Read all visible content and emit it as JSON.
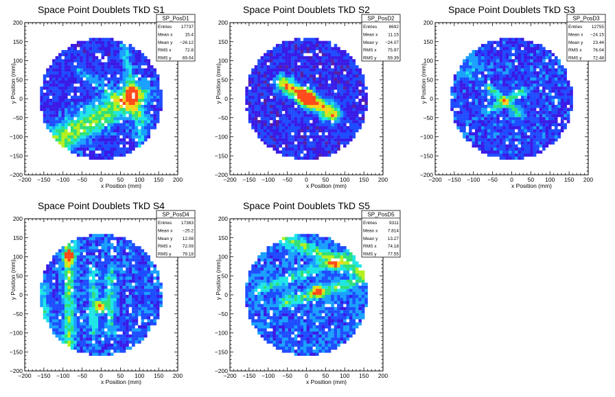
{
  "colors": {
    "background": "#ffffff",
    "frame": "#000000",
    "palette": [
      "#5a1ea0",
      "#3a1ae6",
      "#1e4cff",
      "#1aa0ff",
      "#1ee6e6",
      "#2fe07a",
      "#b4f01e",
      "#ffd21e",
      "#ff4a1a"
    ]
  },
  "chart_data": [
    {
      "type": "heatmap",
      "title": "Space Point Doublets TkD S1",
      "xlabel": "x Position (mm)",
      "ylabel": "y Position (mm)",
      "xlim": [
        -200,
        200
      ],
      "ylim": [
        -200,
        200
      ],
      "xticks": [
        "−200",
        "−150",
        "−100",
        "−50",
        "0",
        "50",
        "100",
        "150",
        "200"
      ],
      "yticks": [
        "−200",
        "−150",
        "−100",
        "−50",
        "0",
        "50",
        "100",
        "150",
        "200"
      ],
      "stats": {
        "name": "SP_PosD1",
        "rows": [
          {
            "label": "Entries",
            "value": "17737"
          },
          {
            "label": "Mean x",
            "value": "15.4"
          },
          {
            "label": "Mean y",
            "value": "−26.12"
          },
          {
            "label": "RMS x",
            "value": "72.8"
          },
          {
            "label": "RMS y",
            "value": "69.04"
          }
        ]
      },
      "footprint_radius_mm": 160,
      "background_level": 0.22,
      "features": [
        {
          "kind": "band",
          "from": [
            -110,
            -110
          ],
          "to": [
            90,
            10
          ],
          "width": 26,
          "strength": 0.45
        },
        {
          "kind": "band",
          "from": [
            -60,
            80
          ],
          "to": [
            120,
            -60
          ],
          "width": 10,
          "strength": 0.2
        },
        {
          "kind": "band",
          "from": [
            60,
            140
          ],
          "to": [
            110,
            -130
          ],
          "width": 10,
          "strength": 0.22
        },
        {
          "kind": "spot",
          "center": [
            80,
            15
          ],
          "radius": 10,
          "strength": 0.7
        }
      ]
    },
    {
      "type": "heatmap",
      "title": "Space Point Doublets TkD S2",
      "xlabel": "x Position (mm)",
      "ylabel": "y Position (mm)",
      "xlim": [
        -200,
        200
      ],
      "ylim": [
        -200,
        200
      ],
      "xticks": [
        "−200",
        "−150",
        "−100",
        "−50",
        "0",
        "50",
        "100",
        "150",
        "200"
      ],
      "yticks": [
        "−200",
        "−150",
        "−100",
        "−50",
        "0",
        "50",
        "100",
        "150",
        "200"
      ],
      "stats": {
        "name": "SP_PosD2",
        "rows": [
          {
            "label": "Entries",
            "value": "8692"
          },
          {
            "label": "Mean x",
            "value": "11.15"
          },
          {
            "label": "Mean y",
            "value": "−24.07"
          },
          {
            "label": "RMS x",
            "value": "75.97"
          },
          {
            "label": "RMS y",
            "value": "59.39"
          }
        ]
      },
      "footprint_radius_mm": 160,
      "background_level": 0.2,
      "features": [
        {
          "kind": "band",
          "from": [
            -60,
            40
          ],
          "to": [
            70,
            -40
          ],
          "width": 14,
          "strength": 0.65
        },
        {
          "kind": "spot",
          "center": [
            0,
            0
          ],
          "radius": 14,
          "strength": 0.75
        }
      ]
    },
    {
      "type": "heatmap",
      "title": "Space Point Doublets TkD S3",
      "xlabel": "x Position (mm)",
      "ylabel": "y Position (mm)",
      "xlim": [
        -200,
        200
      ],
      "ylim": [
        -200,
        200
      ],
      "xticks": [
        "−200",
        "−150",
        "−100",
        "−50",
        "0",
        "50",
        "100",
        "150",
        "200"
      ],
      "yticks": [
        "−200",
        "−150",
        "−100",
        "−50",
        "0",
        "50",
        "100",
        "150",
        "200"
      ],
      "stats": {
        "name": "SP_PosD3",
        "rows": [
          {
            "label": "Entries",
            "value": "12755"
          },
          {
            "label": "Mean x",
            "value": "−24.15"
          },
          {
            "label": "Mean y",
            "value": "23.44"
          },
          {
            "label": "RMS x",
            "value": "76.04"
          },
          {
            "label": "RMS y",
            "value": "72.48"
          }
        ]
      },
      "footprint_radius_mm": 160,
      "background_level": 0.25,
      "features": [
        {
          "kind": "band",
          "from": [
            -60,
            30
          ],
          "to": [
            20,
            -40
          ],
          "width": 8,
          "strength": 0.35
        },
        {
          "kind": "band",
          "from": [
            -60,
            -30
          ],
          "to": [
            30,
            20
          ],
          "width": 8,
          "strength": 0.35
        },
        {
          "kind": "spot",
          "center": [
            -110,
            80
          ],
          "radius": 25,
          "strength": 0.15
        }
      ]
    },
    {
      "type": "heatmap",
      "title": "Space Point Doublets TkD S4",
      "xlabel": "x Position (mm)",
      "ylabel": "y Position (mm)",
      "xlim": [
        -200,
        200
      ],
      "ylim": [
        -200,
        200
      ],
      "xticks": [
        "−200",
        "−150",
        "−100",
        "−50",
        "0",
        "50",
        "100",
        "150",
        "200"
      ],
      "yticks": [
        "−200",
        "−150",
        "−100",
        "−50",
        "0",
        "50",
        "100",
        "150",
        "200"
      ],
      "stats": {
        "name": "SP_PosD4",
        "rows": [
          {
            "label": "Entries",
            "value": "17383"
          },
          {
            "label": "Mean x",
            "value": "−25.2"
          },
          {
            "label": "Mean y",
            "value": "12.08"
          },
          {
            "label": "RMS x",
            "value": "72.09"
          },
          {
            "label": "RMS y",
            "value": "79.18"
          }
        ]
      },
      "footprint_radius_mm": 160,
      "background_level": 0.28,
      "features": [
        {
          "kind": "band",
          "from": [
            -85,
            150
          ],
          "to": [
            -85,
            -150
          ],
          "width": 10,
          "strength": 0.35
        },
        {
          "kind": "band",
          "from": [
            -20,
            60
          ],
          "to": [
            -20,
            -100
          ],
          "width": 8,
          "strength": 0.25
        },
        {
          "kind": "band",
          "from": [
            25,
            60
          ],
          "to": [
            25,
            -100
          ],
          "width": 8,
          "strength": 0.25
        },
        {
          "kind": "band",
          "from": [
            -150,
            20
          ],
          "to": [
            -150,
            -120
          ],
          "width": 8,
          "strength": 0.22
        },
        {
          "kind": "spot",
          "center": [
            -85,
            100
          ],
          "radius": 12,
          "strength": 0.55
        },
        {
          "kind": "spot",
          "center": [
            0,
            -30
          ],
          "radius": 10,
          "strength": 0.7
        }
      ]
    },
    {
      "type": "heatmap",
      "title": "Space Point Doublets TkD S5",
      "xlabel": "x Position (mm)",
      "ylabel": "y Position (mm)",
      "xlim": [
        -200,
        200
      ],
      "ylim": [
        -200,
        200
      ],
      "xticks": [
        "−200",
        "−150",
        "−100",
        "−50",
        "0",
        "50",
        "100",
        "150",
        "200"
      ],
      "yticks": [
        "−200",
        "−150",
        "−100",
        "−50",
        "0",
        "50",
        "100",
        "150",
        "200"
      ],
      "stats": {
        "name": "SP_PosD5",
        "rows": [
          {
            "label": "Entries",
            "value": "9311"
          },
          {
            "label": "Mean x",
            "value": "7.814"
          },
          {
            "label": "Mean y",
            "value": "13.27"
          },
          {
            "label": "RMS x",
            "value": "74.18"
          },
          {
            "label": "RMS y",
            "value": "77.55"
          }
        ]
      },
      "footprint_radius_mm": 160,
      "background_level": 0.3,
      "features": [
        {
          "kind": "band",
          "from": [
            -60,
            150
          ],
          "to": [
            150,
            60
          ],
          "width": 12,
          "strength": 0.32
        },
        {
          "kind": "band",
          "from": [
            -130,
            10
          ],
          "to": [
            130,
            110
          ],
          "width": 10,
          "strength": 0.22
        },
        {
          "kind": "band",
          "from": [
            -60,
            -20
          ],
          "to": [
            150,
            40
          ],
          "width": 10,
          "strength": 0.3
        },
        {
          "kind": "spot",
          "center": [
            30,
            10
          ],
          "radius": 10,
          "strength": 0.65
        },
        {
          "kind": "spot",
          "center": [
            70,
            80
          ],
          "radius": 8,
          "strength": 0.5
        }
      ]
    }
  ]
}
